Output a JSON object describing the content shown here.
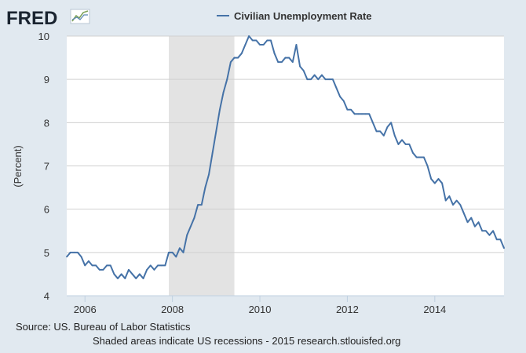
{
  "brand": {
    "logo_text": "FRED",
    "logo_color": "#1a2430",
    "icon": "trend-graph-icon"
  },
  "colors": {
    "background": "#e1e9f0",
    "plot_background": "#ffffff",
    "gridline": "#d0d0d0",
    "series_line": "#4572a7",
    "recession_shade": "#e3e3e3"
  },
  "chart_data": {
    "type": "line",
    "title": "",
    "xlabel": "",
    "ylabel": "(Percent)",
    "ylim": [
      4,
      10
    ],
    "yticks": [
      "4",
      "5",
      "6",
      "7",
      "8",
      "9",
      "10"
    ],
    "xlim": [
      2005.583,
      2015.583
    ],
    "xticks": [
      "2006",
      "2008",
      "2010",
      "2012",
      "2014"
    ],
    "grid": true,
    "legend": {
      "placement": "top-center"
    },
    "recession": {
      "start": 2007.917,
      "end": 2009.417
    },
    "series": [
      {
        "name": "Civilian Unemployment Rate",
        "start": "2005-08",
        "frequency": "monthly",
        "values": [
          4.9,
          5.0,
          5.0,
          5.0,
          4.9,
          4.7,
          4.8,
          4.7,
          4.7,
          4.6,
          4.6,
          4.7,
          4.7,
          4.5,
          4.4,
          4.5,
          4.4,
          4.6,
          4.5,
          4.4,
          4.5,
          4.4,
          4.6,
          4.7,
          4.6,
          4.7,
          4.7,
          4.7,
          5.0,
          5.0,
          4.9,
          5.1,
          5.0,
          5.4,
          5.6,
          5.8,
          6.1,
          6.1,
          6.5,
          6.8,
          7.3,
          7.8,
          8.3,
          8.7,
          9.0,
          9.4,
          9.5,
          9.5,
          9.6,
          9.8,
          10.0,
          9.9,
          9.9,
          9.8,
          9.8,
          9.9,
          9.9,
          9.6,
          9.4,
          9.4,
          9.5,
          9.5,
          9.4,
          9.8,
          9.3,
          9.2,
          9.0,
          9.0,
          9.1,
          9.0,
          9.1,
          9.0,
          9.0,
          9.0,
          8.8,
          8.6,
          8.5,
          8.3,
          8.3,
          8.2,
          8.2,
          8.2,
          8.2,
          8.2,
          8.0,
          7.8,
          7.8,
          7.7,
          7.9,
          8.0,
          7.7,
          7.5,
          7.6,
          7.5,
          7.5,
          7.3,
          7.2,
          7.2,
          7.2,
          7.0,
          6.7,
          6.6,
          6.7,
          6.6,
          6.2,
          6.3,
          6.1,
          6.2,
          6.1,
          5.9,
          5.7,
          5.8,
          5.6,
          5.7,
          5.5,
          5.5,
          5.4,
          5.5,
          5.3,
          5.3,
          5.1
        ]
      }
    ]
  },
  "footer": {
    "source": "Source: US. Bureau of Labor Statistics",
    "note": "Shaded areas indicate US recessions - 2015 research.stlouisfed.org"
  }
}
